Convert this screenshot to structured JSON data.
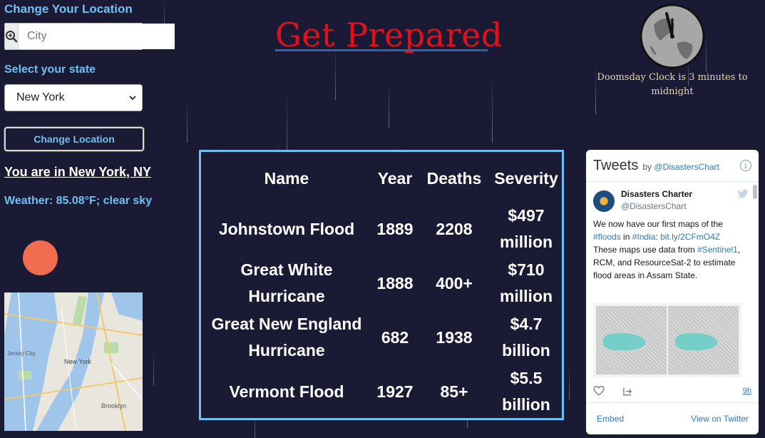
{
  "location": {
    "title": "Change Your Location",
    "city_placeholder": "City",
    "state_label": "Select your state",
    "state_selected": "New York",
    "change_button": "Change Location",
    "current_location": "You are in New York, NY",
    "weather": "Weather: 85.08°F; clear sky"
  },
  "header": {
    "title": "Get Prepared"
  },
  "clock": {
    "caption": "Doomsday Clock is 3 minutes to midnight"
  },
  "disasters": {
    "columns": [
      "Name",
      "Year",
      "Deaths",
      "Severity"
    ],
    "rows": [
      {
        "name": "Johnstown Flood",
        "year": "1889",
        "deaths": "2208",
        "severity": "$497 million"
      },
      {
        "name": "Great White Hurricane",
        "year": "1888",
        "deaths": "400+",
        "severity": "$710 million"
      },
      {
        "name": "Great New England Hurricane",
        "year": "682",
        "deaths": "1938",
        "severity": "$4.7 billion"
      },
      {
        "name": "Vermont Flood",
        "year": "1927",
        "deaths": "85+",
        "severity": "$5.5 billion"
      }
    ]
  },
  "tweets": {
    "title": "Tweets",
    "by": "by",
    "handle_link": "@DisastersChart",
    "user_name": "Disasters Charter",
    "user_handle": "@DisastersChart",
    "text_1": "We now have our first maps of the",
    "tag_floods": "#floods",
    "text_in": "in",
    "tag_india": "#India",
    "link": "bit.ly/2CFmO4Z",
    "text_2": "These maps use data from",
    "tag_sentinel": "#Sentinel1",
    "text_3": ", RCM, and ResourceSat-2 to estimate flood areas in Assam State.",
    "time": "9h",
    "embed": "Embed",
    "view_on": "View on Twitter"
  },
  "map": {
    "labels": [
      "Jersey City",
      "New York",
      "Brooklyn"
    ]
  }
}
